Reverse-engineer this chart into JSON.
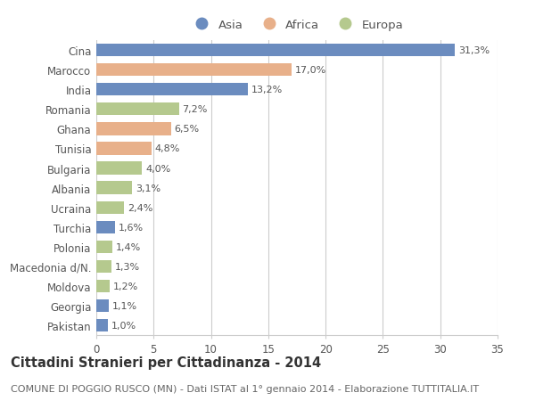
{
  "countries": [
    "Cina",
    "Marocco",
    "India",
    "Romania",
    "Ghana",
    "Tunisia",
    "Bulgaria",
    "Albania",
    "Ucraina",
    "Turchia",
    "Polonia",
    "Macedonia d/N.",
    "Moldova",
    "Georgia",
    "Pakistan"
  ],
  "values": [
    31.3,
    17.0,
    13.2,
    7.2,
    6.5,
    4.8,
    4.0,
    3.1,
    2.4,
    1.6,
    1.4,
    1.3,
    1.2,
    1.1,
    1.0
  ],
  "labels": [
    "31,3%",
    "17,0%",
    "13,2%",
    "7,2%",
    "6,5%",
    "4,8%",
    "4,0%",
    "3,1%",
    "2,4%",
    "1,6%",
    "1,4%",
    "1,3%",
    "1,2%",
    "1,1%",
    "1,0%"
  ],
  "continents": [
    "Asia",
    "Africa",
    "Asia",
    "Europa",
    "Africa",
    "Africa",
    "Europa",
    "Europa",
    "Europa",
    "Asia",
    "Europa",
    "Europa",
    "Europa",
    "Asia",
    "Asia"
  ],
  "colors": {
    "Asia": "#6b8cbf",
    "Africa": "#e8b08a",
    "Europa": "#b5c98e"
  },
  "legend_labels": [
    "Asia",
    "Africa",
    "Europa"
  ],
  "title": "Cittadini Stranieri per Cittadinanza - 2014",
  "subtitle": "COMUNE DI POGGIO RUSCO (MN) - Dati ISTAT al 1° gennaio 2014 - Elaborazione TUTTITALIA.IT",
  "xlim": [
    0,
    35
  ],
  "xticks": [
    0,
    5,
    10,
    15,
    20,
    25,
    30,
    35
  ],
  "background_color": "#ffffff",
  "grid_color": "#cccccc",
  "bar_height": 0.65,
  "title_fontsize": 10.5,
  "subtitle_fontsize": 8,
  "label_fontsize": 8,
  "tick_fontsize": 8.5,
  "legend_fontsize": 9.5
}
